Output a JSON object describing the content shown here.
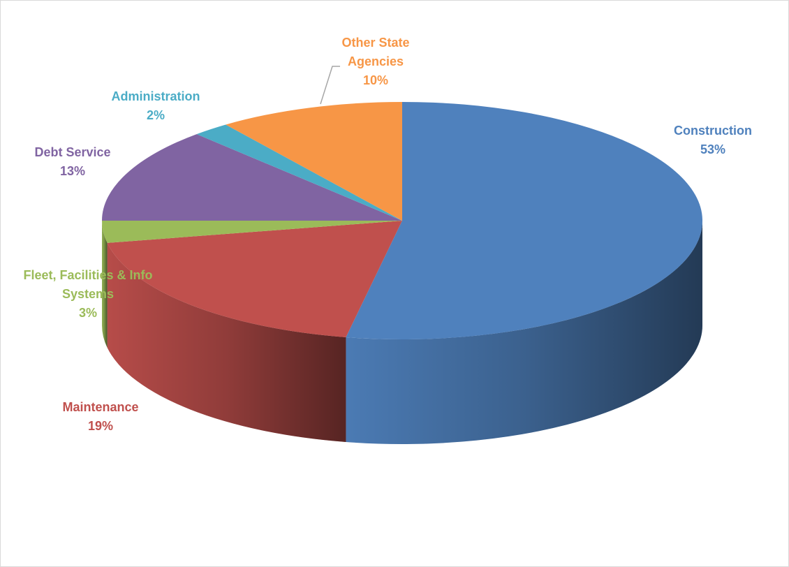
{
  "chart_data": {
    "type": "pie",
    "categories": [
      "Construction",
      "Maintenance",
      "Fleet, Facilities & Info Systems",
      "Debt Service",
      "Administration",
      "Other State Agencies"
    ],
    "values": [
      53,
      19,
      3,
      13,
      2,
      10
    ],
    "value_labels": [
      "53%",
      "19%",
      "3%",
      "13%",
      "2%",
      "10%"
    ],
    "colors": [
      "#4f81bd",
      "#c0504d",
      "#9bbb59",
      "#8064a2",
      "#4bacc6",
      "#f79646"
    ]
  }
}
